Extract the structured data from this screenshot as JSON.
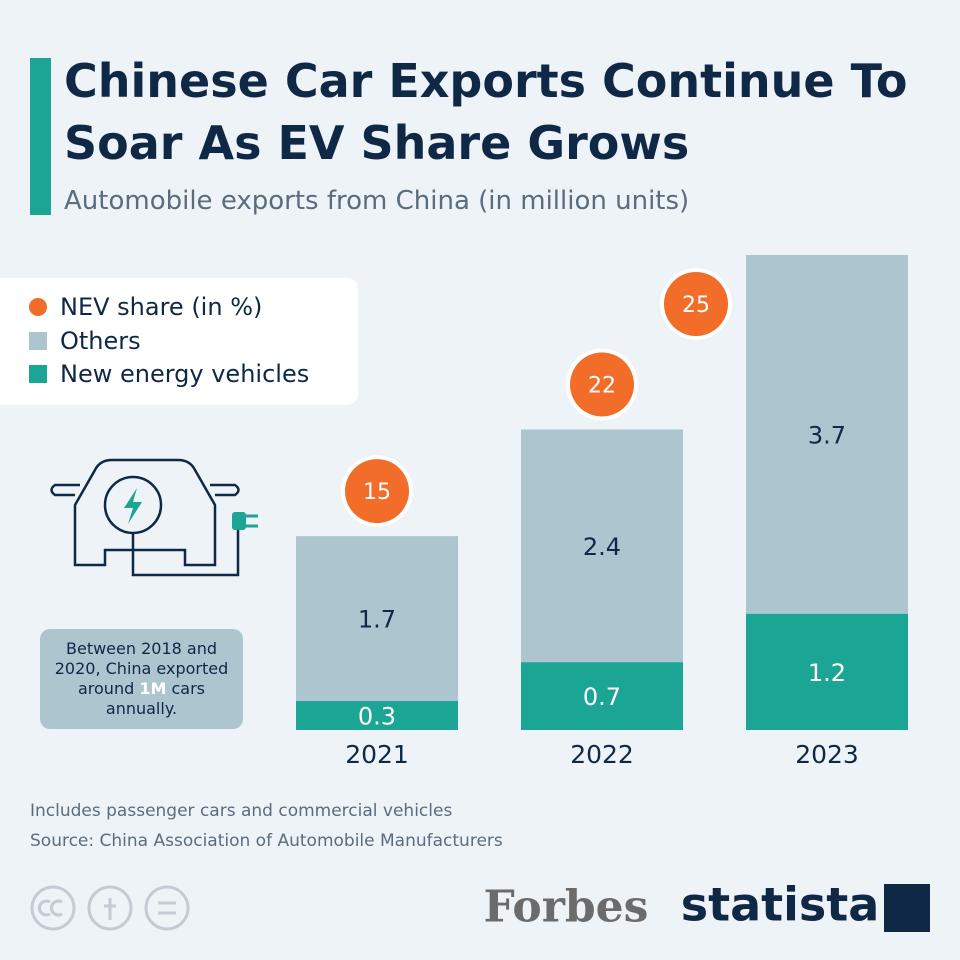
{
  "chart_data": {
    "type": "stacked-bar",
    "title": "Chinese Car Exports Continue To Soar As EV Share Grows",
    "subtitle": "Automobile exports from China (in million units)",
    "categories": [
      "2021",
      "2022",
      "2023"
    ],
    "series": [
      {
        "name": "New energy vehicles",
        "color": "#1ba594",
        "values": [
          0.3,
          0.7,
          1.2
        ]
      },
      {
        "name": "Others",
        "color": "#adc5cf",
        "values": [
          1.7,
          2.4,
          3.7
        ]
      }
    ],
    "nev_share": {
      "name": "NEV share (in %)",
      "color": "#f26c2a",
      "values": [
        15,
        22,
        25
      ]
    },
    "annotation": [
      "Between 2018 and 2020, China exported around ",
      "1M",
      " cars annually."
    ],
    "note": "Includes passenger cars and commercial vehicles",
    "source": "Source: China Association of Automobile Manufacturers",
    "brands": [
      "Forbes",
      "statista"
    ]
  }
}
